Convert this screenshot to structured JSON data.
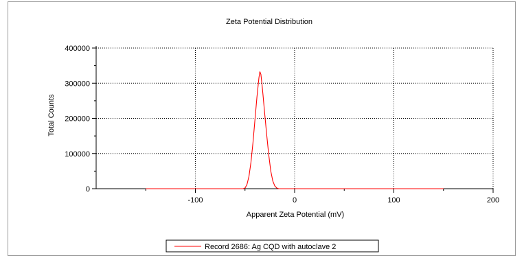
{
  "chart_data": {
    "type": "line",
    "title": "Zeta Potential Distribution",
    "xlabel": "Apparent Zeta Potential (mV)",
    "ylabel": "Total Counts",
    "xlim": [
      -200,
      200
    ],
    "ylim": [
      0,
      400000
    ],
    "x_ticks": [
      -100,
      0,
      100,
      200
    ],
    "y_ticks": [
      0,
      100000,
      200000,
      300000,
      400000
    ],
    "grid": true,
    "legend_position": "bottom-center",
    "series": [
      {
        "name": "Record 2686: Ag CQD with autoclave 2",
        "color": "#ff0000",
        "x": [
          -150,
          -60,
          -52,
          -50,
          -48,
          -46,
          -44,
          -42,
          -40,
          -38,
          -36,
          -35,
          -34,
          -33,
          -32,
          -30,
          -28,
          -26,
          -24,
          -22,
          -20,
          -18,
          -16,
          -14,
          0,
          50,
          150
        ],
        "y": [
          0,
          0,
          0,
          2000,
          12000,
          35000,
          75000,
          130000,
          195000,
          260000,
          315000,
          333000,
          325000,
          300000,
          270000,
          210000,
          150000,
          95000,
          50000,
          22000,
          8000,
          2000,
          0,
          0,
          0,
          0,
          0
        ]
      }
    ]
  }
}
